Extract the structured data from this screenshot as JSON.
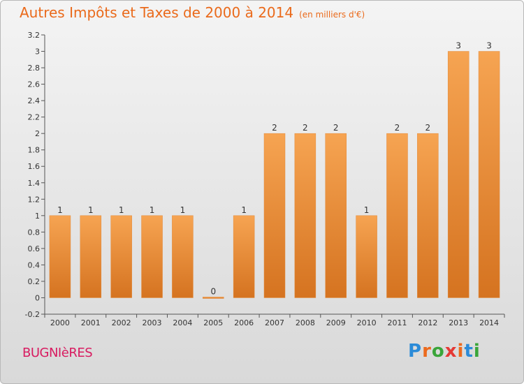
{
  "title": "Autres Impôts et Taxes de 2000 à 2014",
  "unit": "(en milliers d'€)",
  "commune": "BUGNIèRES",
  "logo": {
    "letters": [
      "P",
      "r",
      "o",
      "x",
      "i",
      "t",
      "i"
    ],
    "colors": [
      "#2b8bd8",
      "#ec6a1d",
      "#3aa53a",
      "#e53935",
      "#ec6a1d",
      "#2b8bd8",
      "#3aa53a"
    ]
  },
  "colors": {
    "bar": "#f29a44",
    "bar_dark": "#d57320",
    "accent": "#ea6a1b"
  },
  "chart_data": {
    "type": "bar",
    "categories": [
      "2000",
      "2001",
      "2002",
      "2003",
      "2004",
      "2005",
      "2006",
      "2007",
      "2008",
      "2009",
      "2010",
      "2011",
      "2012",
      "2013",
      "2014"
    ],
    "values": [
      1,
      1,
      1,
      1,
      1,
      0,
      1,
      2,
      2,
      2,
      1,
      2,
      2,
      3,
      3
    ],
    "data_labels": [
      "1",
      "1",
      "1",
      "1",
      "1",
      "0",
      "1",
      "2",
      "2",
      "2",
      "1",
      "2",
      "2",
      "3",
      "3"
    ],
    "title": "Autres Impôts et Taxes de 2000 à 2014",
    "xlabel": "",
    "ylabel": "",
    "ylim": [
      -0.2,
      3.2
    ],
    "yticks": [
      -0.2,
      0,
      0.2,
      0.4,
      0.6,
      0.8,
      1,
      1.2,
      1.4,
      1.6,
      1.8,
      2,
      2.2,
      2.4,
      2.6,
      2.8,
      3,
      3.2
    ],
    "ytick_labels": [
      "-0.2",
      "0",
      "0.2",
      "0.4",
      "0.6",
      "0.8",
      "1",
      "1.2",
      "1.4",
      "1.6",
      "1.8",
      "2",
      "2.2",
      "2.4",
      "2.6",
      "2.8",
      "3",
      "3.2"
    ],
    "grid": false
  }
}
